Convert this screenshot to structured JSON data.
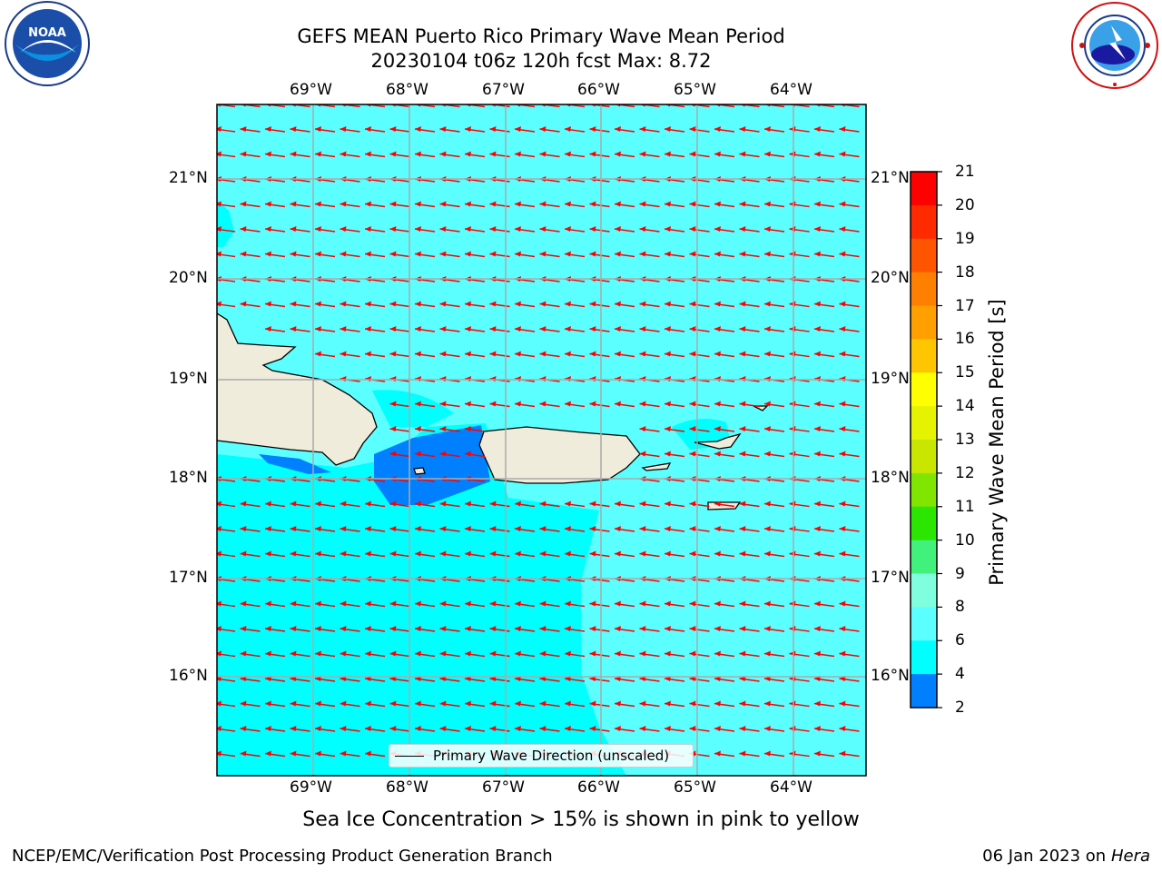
{
  "title": {
    "line1": "GEFS MEAN Puerto Rico Primary Wave Mean Period",
    "line2": "20230104 t06z 120h fcst   Max: 8.72"
  },
  "logos": {
    "left": "noaa-logo",
    "right": "nws-logo"
  },
  "axes": {
    "lon_labels": [
      "69°W",
      "68°W",
      "67°W",
      "66°W",
      "65°W",
      "64°W"
    ],
    "lat_labels": [
      "21°N",
      "20°N",
      "19°N",
      "18°N",
      "17°N",
      "16°N"
    ]
  },
  "legend": {
    "label": "Primary Wave Direction (unscaled)"
  },
  "colorbar": {
    "title": "Primary Wave Mean Period [s]",
    "ticks": [
      "21",
      "20",
      "19",
      "18",
      "17",
      "16",
      "15",
      "14",
      "13",
      "12",
      "11",
      "10",
      "9",
      "8",
      "6",
      "4",
      "2"
    ],
    "colors": [
      "#ff0000",
      "#ff2a00",
      "#ff5500",
      "#ff7f00",
      "#ff9f00",
      "#ffc600",
      "#ffff00",
      "#e5f200",
      "#c8e600",
      "#80e600",
      "#2ae600",
      "#40f27c",
      "#80ffdf",
      "#5cffff",
      "#00ffff",
      "#0080ff",
      "#0000ff"
    ]
  },
  "map": {
    "colors": {
      "ocean_main": "#5cffff",
      "ocean_period_6_8": "#00ffff",
      "ocean_period_4_6": "#0080ff",
      "land": "#efecdc",
      "arrows": "#ff0000"
    }
  },
  "subtitle": "Sea Ice Concentration > 15% is shown in pink to yellow",
  "footer": {
    "left": "NCEP/EMC/Verification Post Processing Product Generation Branch",
    "date": "06 Jan 2023 on",
    "host": "Hera"
  }
}
